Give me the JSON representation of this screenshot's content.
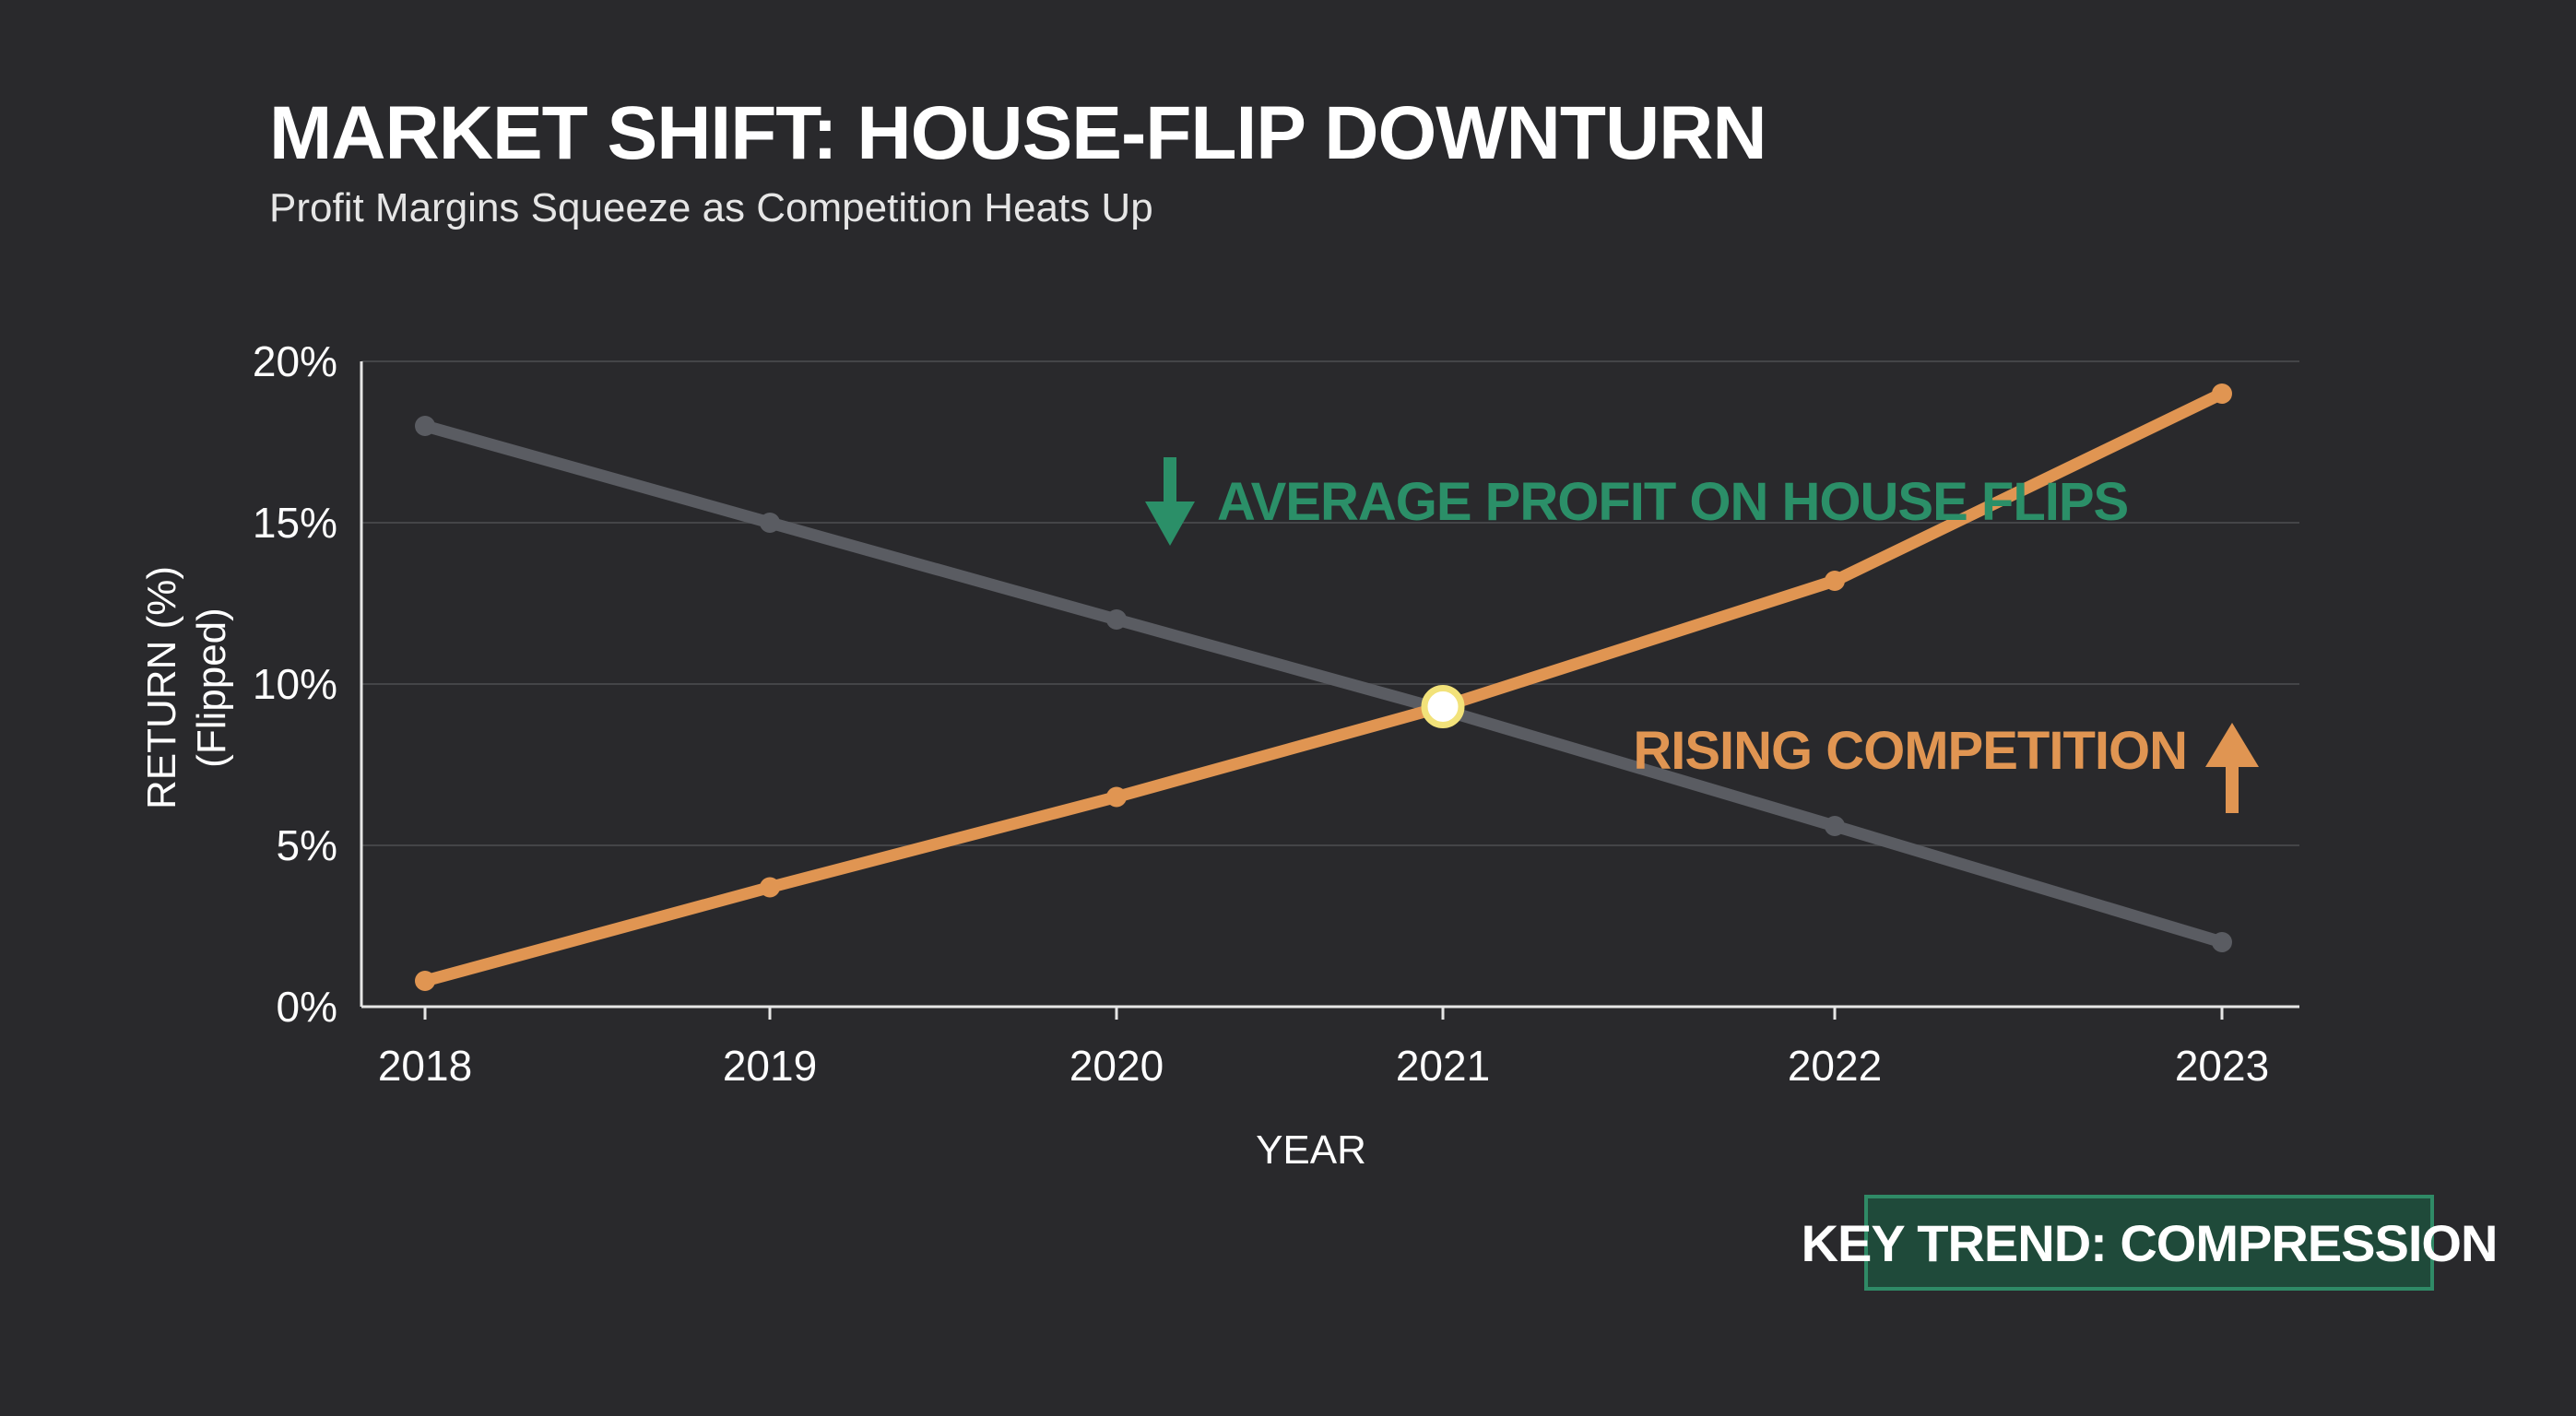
{
  "chart_data": {
    "type": "line",
    "title": "MARKET SHIFT: HOUSE-FLIP DOWNTURN",
    "subtitle": "Profit Margins Squeeze as Competition Heats Up",
    "xlabel": "YEAR",
    "ylabel_line1": "RETURN (%)",
    "ylabel_line2": "(Flipped)",
    "categories": [
      "2018",
      "2019",
      "2020",
      "2021",
      "2022",
      "2023"
    ],
    "ylim": [
      0,
      20
    ],
    "yticks": [
      0,
      5,
      10,
      15,
      20
    ],
    "ytick_labels": [
      "0%",
      "5%",
      "10%",
      "15%",
      "20%"
    ],
    "grid": true,
    "series": [
      {
        "values": [
          18,
          15,
          12,
          9.2,
          5.6,
          2
        ],
        "color": "#5a5c62"
      },
      {
        "values": [
          0.8,
          3.7,
          6.5,
          9.3,
          13.2,
          19
        ],
        "color": "#e09552"
      }
    ],
    "crossover_highlight": {
      "x": "2021",
      "y": 9.3,
      "color": "#f2e27a"
    },
    "annotations": {
      "profit": {
        "text": "AVERAGE PROFIT ON HOUSE FLIPS",
        "icon": "arrow-down-icon",
        "color": "#2b8f68"
      },
      "competition": {
        "text": "RISING COMPETITION",
        "icon": "arrow-up-icon",
        "color": "#e09552"
      }
    },
    "badge": {
      "text": "KEY TREND: COMPRESSION",
      "bg": "#1f4a3a",
      "border": "#2f8a66"
    },
    "colors": {
      "background": "#29292c",
      "grid": "#444548",
      "axis": "#e6e6e6"
    }
  }
}
